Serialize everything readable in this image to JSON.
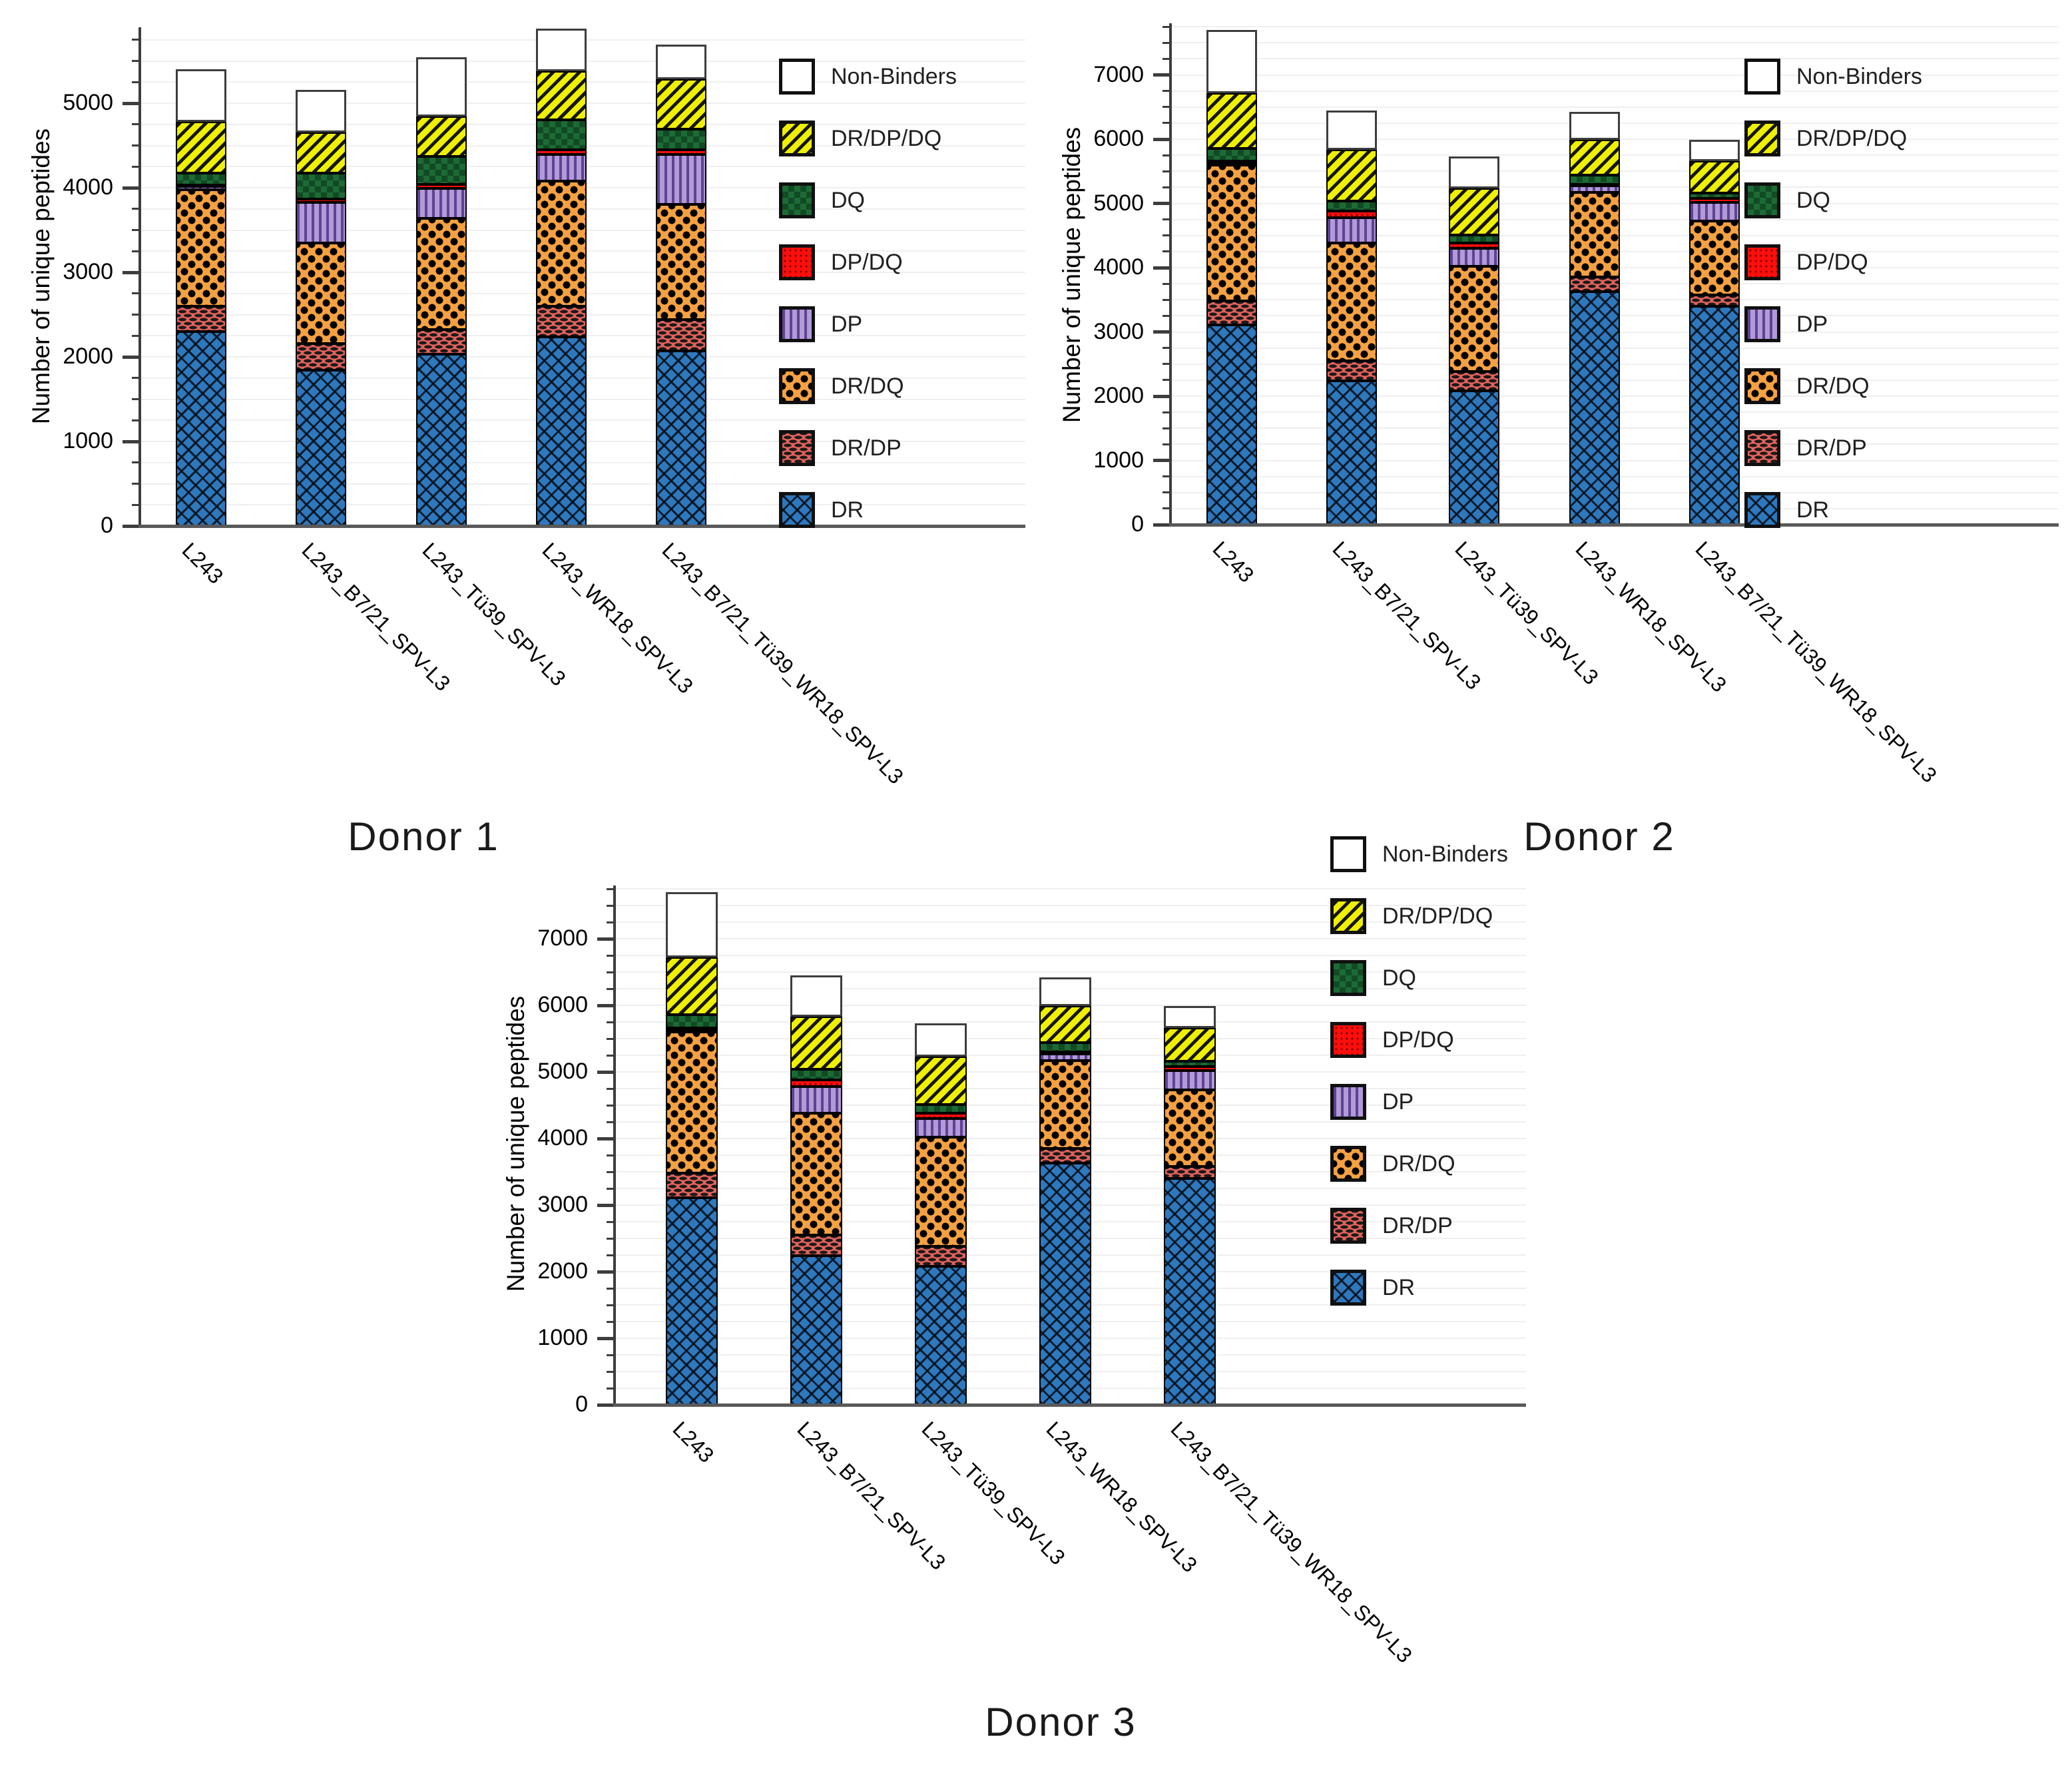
{
  "figure": {
    "background": "#ffffff"
  },
  "categories": [
    "L243",
    "L243_B7/21_SPV-L3",
    "L243_Tü39_SPV-L3",
    "L243_WR18_SPV-L3",
    "L243_B7/21_Tü39_WR18_SPV-L3"
  ],
  "legend": {
    "entries": [
      {
        "label": "Non-Binders",
        "series": "nb"
      },
      {
        "label": "DR/DP/DQ",
        "series": "drdpdq"
      },
      {
        "label": "DQ",
        "series": "dq"
      },
      {
        "label": "DP/DQ",
        "series": "dpdq"
      },
      {
        "label": "DP",
        "series": "dp"
      },
      {
        "label": "DR/DQ",
        "series": "drdq"
      },
      {
        "label": "DR/DP",
        "series": "drdp"
      },
      {
        "label": "DR",
        "series": "dr"
      }
    ]
  },
  "series_styles": {
    "dr": {
      "name": "DR",
      "color": "#2E78BE",
      "pattern": "diagonal-crosshatch"
    },
    "drdp": {
      "name": "DR/DP",
      "color": "#E4625C",
      "pattern": "dash-dots"
    },
    "drdq": {
      "name": "DR/DQ",
      "color": "#F5A142",
      "pattern": "large-black-dots"
    },
    "dp": {
      "name": "DP",
      "color": "#B19AD8",
      "pattern": "vertical-stripes",
      "stripe": "#5E4391"
    },
    "dpdq": {
      "name": "DP/DQ",
      "color": "#FA0F0C",
      "pattern": "fine-dots"
    },
    "dq": {
      "name": "DQ",
      "color": "#1C6B35",
      "pattern": "checker",
      "check": "#124A24"
    },
    "drdpdq": {
      "name": "DR/DP/DQ",
      "color": "#EFF000",
      "pattern": "diagonal-black-stripes"
    },
    "nb": {
      "name": "Non-Binders",
      "color": "#FFFFFF",
      "pattern": "none"
    }
  },
  "chart_data": [
    {
      "type": "bar",
      "stacked": true,
      "title": "Donor 1",
      "ylabel": "Number of unique peptides",
      "xlabel": "",
      "ylim": [
        0,
        5900
      ],
      "ytick_step": 1000,
      "yminor_step": 250,
      "ylabel_max": 5000,
      "ytick_labels": [
        "0",
        "1000",
        "2000",
        "3000",
        "4000",
        "5000"
      ],
      "grid": true,
      "legend_position": "right",
      "categories": [
        "L243",
        "L243_B7/21_SPV-L3",
        "L243_Tü39_SPV-L3",
        "L243_WR18_SPV-L3",
        "L243_B7/21_Tü39_WR18_SPV-L3"
      ],
      "series": [
        {
          "key": "dr",
          "name": "DR",
          "values": [
            2300,
            1840,
            2030,
            2240,
            2070
          ]
        },
        {
          "key": "drdp",
          "name": "DR/DP",
          "values": [
            300,
            320,
            290,
            360,
            370
          ]
        },
        {
          "key": "drdq",
          "name": "DR/DQ",
          "values": [
            1380,
            1190,
            1320,
            1480,
            1360
          ]
        },
        {
          "key": "dp",
          "name": "DP",
          "values": [
            40,
            480,
            350,
            310,
            590
          ]
        },
        {
          "key": "dpdq",
          "name": "DP/DQ",
          "values": [
            10,
            40,
            50,
            60,
            60
          ]
        },
        {
          "key": "dq",
          "name": "DQ",
          "values": [
            140,
            300,
            330,
            350,
            240
          ]
        },
        {
          "key": "drdpdq",
          "name": "DR/DP/DQ",
          "values": [
            610,
            480,
            470,
            580,
            590
          ]
        },
        {
          "key": "nb",
          "name": "Non-Binders",
          "values": [
            620,
            510,
            700,
            500,
            410
          ]
        }
      ],
      "totals": [
        5400,
        5160,
        5540,
        5880,
        5690
      ]
    },
    {
      "type": "bar",
      "stacked": true,
      "title": "Donor 2",
      "ylabel": "Number of unique peptides",
      "xlabel": "",
      "ylim": [
        0,
        7800
      ],
      "ytick_step": 1000,
      "yminor_step": 250,
      "ylabel_max": 7000,
      "ytick_labels": [
        "0",
        "1000",
        "2000",
        "3000",
        "4000",
        "5000",
        "6000",
        "7000"
      ],
      "grid": true,
      "legend_position": "right",
      "categories": [
        "L243",
        "L243_B7/21_SPV-L3",
        "L243_Tü39_SPV-L3",
        "L243_WR18_SPV-L3",
        "L243_B7/21_Tü39_WR18_SPV-L3"
      ],
      "series": [
        {
          "key": "dr",
          "name": "DR",
          "values": [
            3110,
            2240,
            2080,
            3630,
            3400
          ]
        },
        {
          "key": "drdp",
          "name": "DR/DP",
          "values": [
            370,
            310,
            300,
            220,
            180
          ]
        },
        {
          "key": "drdq",
          "name": "DR/DQ",
          "values": [
            2120,
            1830,
            1640,
            1320,
            1150
          ]
        },
        {
          "key": "dp",
          "name": "DP",
          "values": [
            50,
            400,
            280,
            100,
            290
          ]
        },
        {
          "key": "dpdq",
          "name": "DP/DQ",
          "values": [
            10,
            100,
            80,
            30,
            60
          ]
        },
        {
          "key": "dq",
          "name": "DQ",
          "values": [
            200,
            160,
            130,
            140,
            80
          ]
        },
        {
          "key": "drdpdq",
          "name": "DR/DP/DQ",
          "values": [
            860,
            790,
            720,
            550,
            500
          ]
        },
        {
          "key": "nb",
          "name": "Non-Binders",
          "values": [
            980,
            620,
            500,
            430,
            330
          ]
        }
      ],
      "totals": [
        7700,
        6450,
        5730,
        6420,
        5990
      ]
    },
    {
      "type": "bar",
      "stacked": true,
      "title": "Donor 3",
      "ylabel": "Number of unique peptides",
      "xlabel": "",
      "ylim": [
        0,
        7800
      ],
      "ytick_step": 1000,
      "yminor_step": 250,
      "ylabel_max": 7000,
      "ytick_labels": [
        "0",
        "1000",
        "2000",
        "3000",
        "4000",
        "5000",
        "6000",
        "7000"
      ],
      "grid": true,
      "legend_position": "right",
      "categories": [
        "L243",
        "L243_B7/21_SPV-L3",
        "L243_Tü39_SPV-L3",
        "L243_WR18_SPV-L3",
        "L243_B7/21_Tü39_WR18_SPV-L3"
      ],
      "series": [
        {
          "key": "dr",
          "name": "DR",
          "values": [
            3110,
            2240,
            2080,
            3630,
            3400
          ]
        },
        {
          "key": "drdp",
          "name": "DR/DP",
          "values": [
            370,
            310,
            300,
            220,
            180
          ]
        },
        {
          "key": "drdq",
          "name": "DR/DQ",
          "values": [
            2120,
            1830,
            1640,
            1320,
            1150
          ]
        },
        {
          "key": "dp",
          "name": "DP",
          "values": [
            50,
            400,
            280,
            100,
            290
          ]
        },
        {
          "key": "dpdq",
          "name": "DP/DQ",
          "values": [
            10,
            100,
            80,
            30,
            60
          ]
        },
        {
          "key": "dq",
          "name": "DQ",
          "values": [
            200,
            160,
            130,
            140,
            80
          ]
        },
        {
          "key": "drdpdq",
          "name": "DR/DP/DQ",
          "values": [
            860,
            790,
            720,
            550,
            500
          ]
        },
        {
          "key": "nb",
          "name": "Non-Binders",
          "values": [
            980,
            620,
            500,
            430,
            330
          ]
        }
      ],
      "totals": [
        7700,
        6450,
        5730,
        6420,
        5990
      ]
    }
  ]
}
